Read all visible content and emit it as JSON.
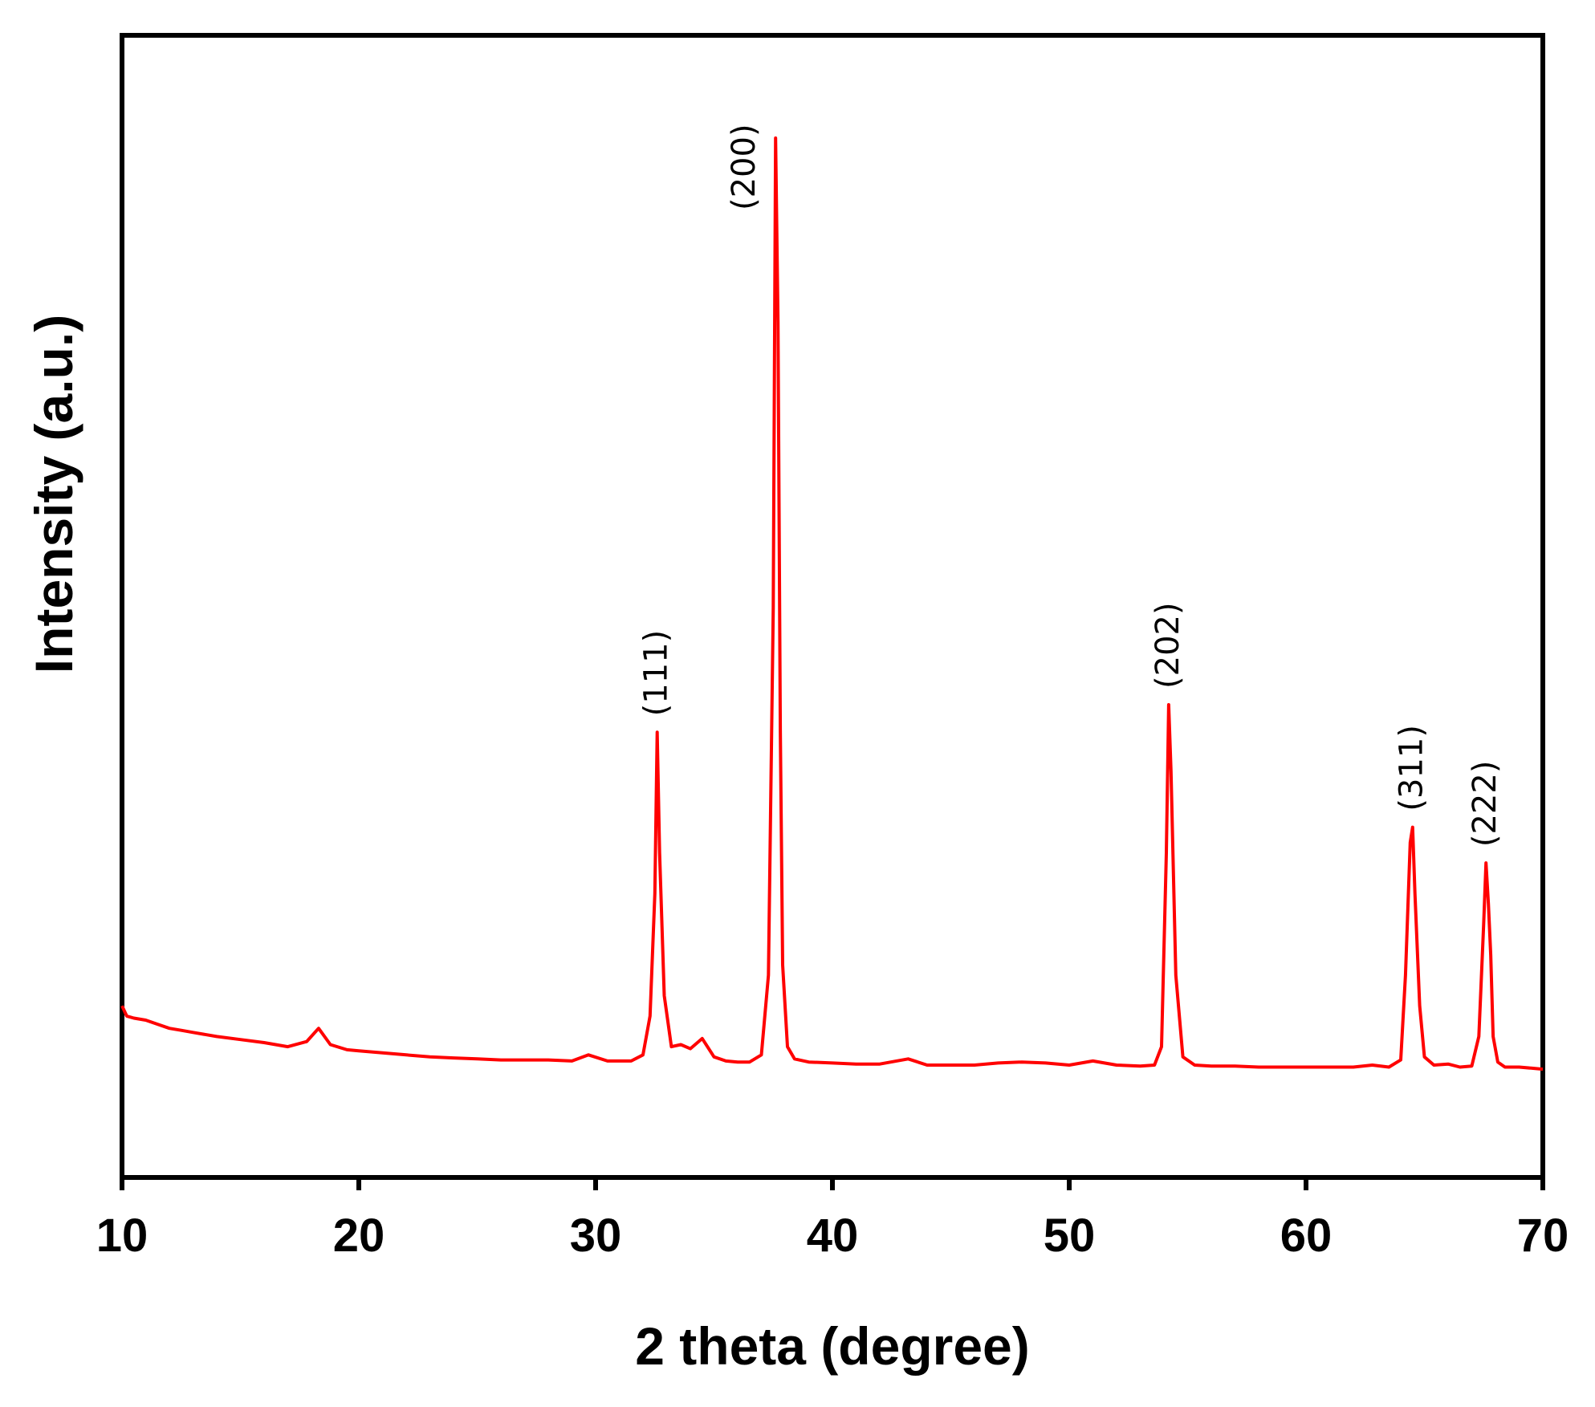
{
  "chart_data": {
    "type": "line",
    "xlabel": "2 theta (degree)",
    "ylabel": "Intensity (a.u.)",
    "xlim": [
      10,
      70
    ],
    "ylim": [
      0,
      1000
    ],
    "y_tick_labels_shown": false,
    "x_ticks": [
      10,
      20,
      30,
      40,
      50,
      60,
      70
    ],
    "x_tick_labels": [
      "10",
      "20",
      "30",
      "40",
      "50",
      "60",
      "70"
    ],
    "grid": false,
    "legend": "none",
    "series_color": "#ff0000",
    "series": [
      {
        "x": [
          10.0,
          10.2,
          10.5,
          11.0,
          11.5,
          12.0,
          12.5,
          13.0,
          14.0,
          15.0,
          16.0,
          17.0,
          17.8,
          18.3,
          18.8,
          19.5,
          20.0,
          21.0,
          22.0,
          23.0,
          24.0,
          25.0,
          26.0,
          27.0,
          28.0,
          29.0,
          29.7,
          30.5,
          31.0,
          31.5,
          32.0,
          32.3,
          32.5,
          32.6,
          32.7,
          32.9,
          33.2,
          33.6,
          34.0,
          34.5,
          35.0,
          35.5,
          36.0,
          36.5,
          37.0,
          37.3,
          37.5,
          37.6,
          37.7,
          37.8,
          37.9,
          38.1,
          38.4,
          39.0,
          40.0,
          41.0,
          42.0,
          43.2,
          44.0,
          45.0,
          46.0,
          47.0,
          48.0,
          49.0,
          50.0,
          51.0,
          52.0,
          53.0,
          53.6,
          53.9,
          54.1,
          54.2,
          54.3,
          54.5,
          54.8,
          55.3,
          56.0,
          57.0,
          58.0,
          59.0,
          60.0,
          61.0,
          62.0,
          62.8,
          63.5,
          64.0,
          64.2,
          64.4,
          64.5,
          64.6,
          64.8,
          65.0,
          65.4,
          66.0,
          66.5,
          67.0,
          67.3,
          67.5,
          67.6,
          67.7,
          67.8,
          67.9,
          68.1,
          68.4,
          69.0,
          69.5,
          70.0
        ],
        "y": [
          150,
          140,
          138,
          136,
          132,
          128,
          126,
          124,
          120,
          117,
          114,
          110,
          115,
          128,
          112,
          107,
          106,
          104,
          102,
          100,
          99,
          98,
          97,
          97,
          97,
          96,
          102,
          96,
          96,
          96,
          102,
          140,
          260,
          418,
          300,
          160,
          110,
          112,
          108,
          118,
          100,
          96,
          95,
          95,
          102,
          180,
          540,
          1000,
          820,
          420,
          190,
          110,
          98,
          95,
          94,
          93,
          93,
          98,
          92,
          92,
          92,
          94,
          95,
          94,
          92,
          96,
          92,
          91,
          92,
          110,
          300,
          445,
          380,
          180,
          100,
          92,
          91,
          91,
          90,
          90,
          90,
          90,
          90,
          92,
          90,
          97,
          180,
          310,
          325,
          260,
          150,
          100,
          92,
          93,
          90,
          91,
          120,
          230,
          290,
          250,
          200,
          120,
          95,
          90,
          90,
          89,
          88
        ]
      }
    ],
    "annotations": [
      {
        "text": "(111)",
        "x": 32.6,
        "y": 418
      },
      {
        "text": "(200)",
        "x": 37.6,
        "y": 1000
      },
      {
        "text": "(202)",
        "x": 54.2,
        "y": 445
      },
      {
        "text": "(311)",
        "x": 64.5,
        "y": 325
      },
      {
        "text": "(222)",
        "x": 67.6,
        "y": 290
      }
    ]
  }
}
